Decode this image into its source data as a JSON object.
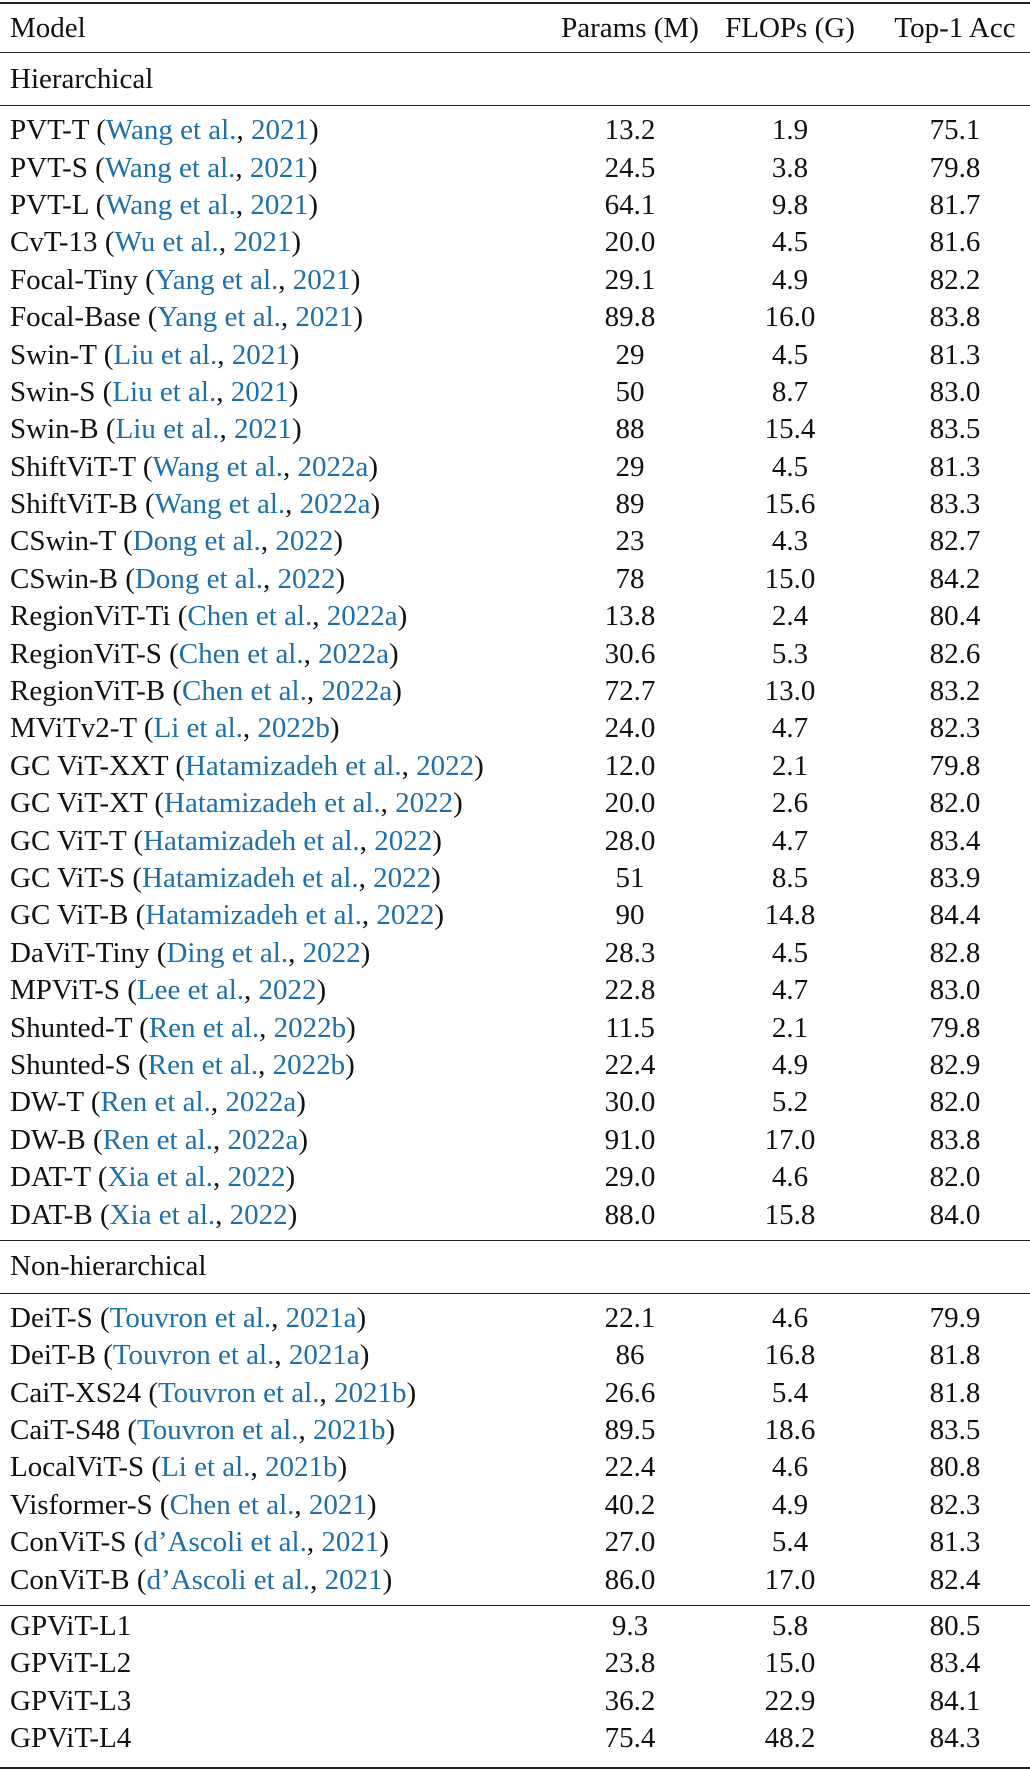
{
  "header": [
    "Model",
    "Params (M)",
    "FLOPs (G)",
    "Top-1 Acc"
  ],
  "sections": [
    {
      "title": "Hierarchical",
      "rows": [
        {
          "model": "PVT-T",
          "cite": [
            "Wang et al.",
            "2021"
          ],
          "values": [
            "13.2",
            "1.9",
            "75.1"
          ]
        },
        {
          "model": "PVT-S",
          "cite": [
            "Wang et al.",
            "2021"
          ],
          "values": [
            "24.5",
            "3.8",
            "79.8"
          ]
        },
        {
          "model": "PVT-L",
          "cite": [
            "Wang et al.",
            "2021"
          ],
          "values": [
            "64.1",
            "9.8",
            "81.7"
          ]
        },
        {
          "model": "CvT-13",
          "cite": [
            "Wu et al.",
            "2021"
          ],
          "values": [
            "20.0",
            "4.5",
            "81.6"
          ]
        },
        {
          "model": "Focal-Tiny",
          "cite": [
            "Yang et al.",
            "2021"
          ],
          "values": [
            "29.1",
            "4.9",
            "82.2"
          ]
        },
        {
          "model": "Focal-Base",
          "cite": [
            "Yang et al.",
            "2021"
          ],
          "values": [
            "89.8",
            "16.0",
            "83.8"
          ]
        },
        {
          "model": "Swin-T",
          "cite": [
            "Liu et al.",
            "2021"
          ],
          "values": [
            "29",
            "4.5",
            "81.3"
          ]
        },
        {
          "model": "Swin-S",
          "cite": [
            "Liu et al.",
            "2021"
          ],
          "values": [
            "50",
            "8.7",
            "83.0"
          ]
        },
        {
          "model": "Swin-B",
          "cite": [
            "Liu et al.",
            "2021"
          ],
          "values": [
            "88",
            "15.4",
            "83.5"
          ]
        },
        {
          "model": "ShiftViT-T",
          "cite": [
            "Wang et al.",
            "2022a"
          ],
          "values": [
            "29",
            "4.5",
            "81.3"
          ]
        },
        {
          "model": "ShiftViT-B",
          "cite": [
            "Wang et al.",
            "2022a"
          ],
          "values": [
            "89",
            "15.6",
            "83.3"
          ]
        },
        {
          "model": "CSwin-T",
          "cite": [
            "Dong et al.",
            "2022"
          ],
          "values": [
            "23",
            "4.3",
            "82.7"
          ]
        },
        {
          "model": "CSwin-B",
          "cite": [
            "Dong et al.",
            "2022"
          ],
          "values": [
            "78",
            "15.0",
            "84.2"
          ]
        },
        {
          "model": "RegionViT-Ti",
          "cite": [
            "Chen et al.",
            "2022a"
          ],
          "values": [
            "13.8",
            "2.4",
            "80.4"
          ]
        },
        {
          "model": "RegionViT-S",
          "cite": [
            "Chen et al.",
            "2022a"
          ],
          "values": [
            "30.6",
            "5.3",
            "82.6"
          ]
        },
        {
          "model": "RegionViT-B",
          "cite": [
            "Chen et al.",
            "2022a"
          ],
          "values": [
            "72.7",
            "13.0",
            "83.2"
          ]
        },
        {
          "model": "MViTv2-T",
          "cite": [
            "Li et al.",
            "2022b"
          ],
          "values": [
            "24.0",
            "4.7",
            "82.3"
          ]
        },
        {
          "model": "GC ViT-XXT",
          "cite": [
            "Hatamizadeh et al.",
            "2022"
          ],
          "values": [
            "12.0",
            "2.1",
            "79.8"
          ]
        },
        {
          "model": "GC ViT-XT",
          "cite": [
            "Hatamizadeh et al.",
            "2022"
          ],
          "values": [
            "20.0",
            "2.6",
            "82.0"
          ]
        },
        {
          "model": "GC ViT-T",
          "cite": [
            "Hatamizadeh et al.",
            "2022"
          ],
          "values": [
            "28.0",
            "4.7",
            "83.4"
          ]
        },
        {
          "model": "GC ViT-S",
          "cite": [
            "Hatamizadeh et al.",
            "2022"
          ],
          "values": [
            "51",
            "8.5",
            "83.9"
          ]
        },
        {
          "model": "GC ViT-B",
          "cite": [
            "Hatamizadeh et al.",
            "2022"
          ],
          "values": [
            "90",
            "14.8",
            "84.4"
          ]
        },
        {
          "model": "DaViT-Tiny",
          "cite": [
            "Ding et al.",
            "2022"
          ],
          "values": [
            "28.3",
            "4.5",
            "82.8"
          ]
        },
        {
          "model": "MPViT-S",
          "cite": [
            "Lee et al.",
            "2022"
          ],
          "values": [
            "22.8",
            "4.7",
            "83.0"
          ]
        },
        {
          "model": "Shunted-T",
          "cite": [
            "Ren et al.",
            "2022b"
          ],
          "values": [
            "11.5",
            "2.1",
            "79.8"
          ]
        },
        {
          "model": "Shunted-S",
          "cite": [
            "Ren et al.",
            "2022b"
          ],
          "values": [
            "22.4",
            "4.9",
            "82.9"
          ]
        },
        {
          "model": "DW-T",
          "cite": [
            "Ren et al.",
            "2022a"
          ],
          "values": [
            "30.0",
            "5.2",
            "82.0"
          ]
        },
        {
          "model": "DW-B",
          "cite": [
            "Ren et al.",
            "2022a"
          ],
          "values": [
            "91.0",
            "17.0",
            "83.8"
          ]
        },
        {
          "model": "DAT-T",
          "cite": [
            "Xia et al.",
            "2022"
          ],
          "values": [
            "29.0",
            "4.6",
            "82.0"
          ]
        },
        {
          "model": "DAT-B",
          "cite": [
            "Xia et al.",
            "2022"
          ],
          "values": [
            "88.0",
            "15.8",
            "84.0"
          ]
        }
      ]
    },
    {
      "title": "Non-hierarchical",
      "rows": [
        {
          "model": "DeiT-S",
          "cite": [
            "Touvron et al.",
            "2021a"
          ],
          "values": [
            "22.1",
            "4.6",
            "79.9"
          ]
        },
        {
          "model": "DeiT-B",
          "cite": [
            "Touvron et al.",
            "2021a"
          ],
          "values": [
            "86",
            "16.8",
            "81.8"
          ]
        },
        {
          "model": "CaiT-XS24",
          "cite": [
            "Touvron et al.",
            "2021b"
          ],
          "values": [
            "26.6",
            "5.4",
            "81.8"
          ]
        },
        {
          "model": "CaiT-S48",
          "cite": [
            "Touvron et al.",
            "2021b"
          ],
          "values": [
            "89.5",
            "18.6",
            "83.5"
          ]
        },
        {
          "model": "LocalViT-S",
          "cite": [
            "Li et al.",
            "2021b"
          ],
          "values": [
            "22.4",
            "4.6",
            "80.8"
          ]
        },
        {
          "model": "Visformer-S",
          "cite": [
            "Chen et al.",
            "2021"
          ],
          "values": [
            "40.2",
            "4.9",
            "82.3"
          ]
        },
        {
          "model": "ConViT-S",
          "cite": [
            "d’Ascoli et al.",
            "2021"
          ],
          "values": [
            "27.0",
            "5.4",
            "81.3"
          ]
        },
        {
          "model": "ConViT-B",
          "cite": [
            "d’Ascoli et al.",
            "2021"
          ],
          "values": [
            "86.0",
            "17.0",
            "82.4"
          ]
        }
      ]
    },
    {
      "rows": [
        {
          "model": "GPViT-L1",
          "values": [
            "9.3",
            "5.8",
            "80.5"
          ]
        },
        {
          "model": "GPViT-L2",
          "values": [
            "23.8",
            "15.0",
            "83.4"
          ]
        },
        {
          "model": "GPViT-L3",
          "values": [
            "36.2",
            "22.9",
            "84.1"
          ]
        },
        {
          "model": "GPViT-L4",
          "values": [
            "75.4",
            "48.2",
            "84.3"
          ]
        }
      ]
    }
  ]
}
